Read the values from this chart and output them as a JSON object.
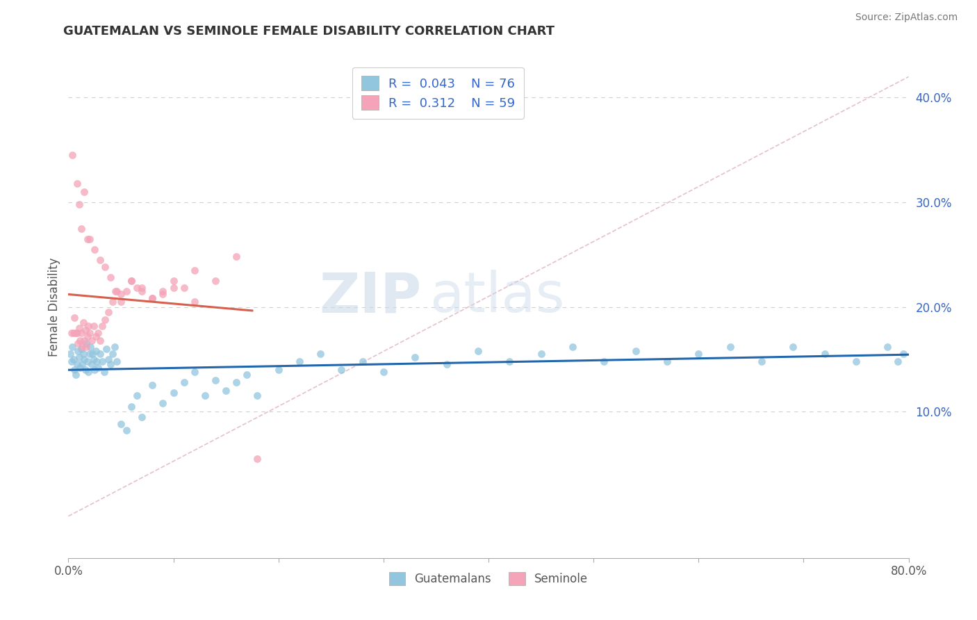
{
  "title": "GUATEMALAN VS SEMINOLE FEMALE DISABILITY CORRELATION CHART",
  "source": "Source: ZipAtlas.com",
  "ylabel": "Female Disability",
  "xlim": [
    0.0,
    0.8
  ],
  "ylim": [
    -0.04,
    0.44
  ],
  "yticks": [
    0.1,
    0.2,
    0.3,
    0.4
  ],
  "ytick_labels": [
    "10.0%",
    "20.0%",
    "30.0%",
    "40.0%"
  ],
  "guatemalan_color": "#92c5de",
  "seminole_color": "#f4a3b8",
  "trend_guatemalan_color": "#2166ac",
  "trend_seminole_color": "#d6604d",
  "diagonal_color": "#e0b0c0",
  "watermark_zip": "ZIP",
  "watermark_atlas": "atlas",
  "legend_blue_label": "R =  0.043   N = 76",
  "legend_pink_label": "R =  0.312   N = 59",
  "guat_x": [
    0.002,
    0.003,
    0.004,
    0.005,
    0.006,
    0.007,
    0.008,
    0.009,
    0.01,
    0.011,
    0.012,
    0.013,
    0.014,
    0.015,
    0.016,
    0.017,
    0.018,
    0.019,
    0.02,
    0.021,
    0.022,
    0.023,
    0.024,
    0.025,
    0.026,
    0.027,
    0.028,
    0.03,
    0.032,
    0.034,
    0.036,
    0.038,
    0.04,
    0.042,
    0.044,
    0.046,
    0.05,
    0.055,
    0.06,
    0.065,
    0.07,
    0.08,
    0.09,
    0.1,
    0.11,
    0.12,
    0.13,
    0.14,
    0.15,
    0.16,
    0.17,
    0.18,
    0.2,
    0.22,
    0.24,
    0.26,
    0.28,
    0.3,
    0.33,
    0.36,
    0.39,
    0.42,
    0.45,
    0.48,
    0.51,
    0.54,
    0.57,
    0.6,
    0.63,
    0.66,
    0.69,
    0.72,
    0.75,
    0.78,
    0.79,
    0.795
  ],
  "guat_y": [
    0.155,
    0.148,
    0.162,
    0.15,
    0.14,
    0.135,
    0.145,
    0.158,
    0.152,
    0.142,
    0.16,
    0.145,
    0.155,
    0.15,
    0.14,
    0.165,
    0.148,
    0.138,
    0.155,
    0.162,
    0.145,
    0.155,
    0.15,
    0.14,
    0.158,
    0.148,
    0.142,
    0.155,
    0.148,
    0.138,
    0.16,
    0.15,
    0.145,
    0.155,
    0.162,
    0.148,
    0.088,
    0.082,
    0.105,
    0.115,
    0.095,
    0.125,
    0.108,
    0.118,
    0.128,
    0.138,
    0.115,
    0.13,
    0.12,
    0.128,
    0.135,
    0.115,
    0.14,
    0.148,
    0.155,
    0.14,
    0.148,
    0.138,
    0.152,
    0.145,
    0.158,
    0.148,
    0.155,
    0.162,
    0.148,
    0.158,
    0.148,
    0.155,
    0.162,
    0.148,
    0.162,
    0.155,
    0.148,
    0.162,
    0.148,
    0.155
  ],
  "semi_x": [
    0.003,
    0.005,
    0.006,
    0.007,
    0.008,
    0.009,
    0.01,
    0.011,
    0.012,
    0.013,
    0.014,
    0.015,
    0.016,
    0.017,
    0.018,
    0.019,
    0.02,
    0.022,
    0.024,
    0.026,
    0.028,
    0.03,
    0.032,
    0.035,
    0.038,
    0.042,
    0.046,
    0.05,
    0.055,
    0.06,
    0.065,
    0.07,
    0.08,
    0.09,
    0.1,
    0.11,
    0.12,
    0.14,
    0.16,
    0.18,
    0.004,
    0.008,
    0.01,
    0.012,
    0.015,
    0.018,
    0.02,
    0.025,
    0.03,
    0.035,
    0.04,
    0.045,
    0.05,
    0.06,
    0.07,
    0.08,
    0.09,
    0.1,
    0.12
  ],
  "semi_y": [
    0.175,
    0.175,
    0.19,
    0.175,
    0.175,
    0.165,
    0.18,
    0.168,
    0.175,
    0.162,
    0.185,
    0.168,
    0.178,
    0.162,
    0.172,
    0.182,
    0.175,
    0.168,
    0.182,
    0.172,
    0.175,
    0.168,
    0.182,
    0.188,
    0.195,
    0.205,
    0.215,
    0.205,
    0.215,
    0.225,
    0.218,
    0.215,
    0.208,
    0.215,
    0.225,
    0.218,
    0.235,
    0.225,
    0.248,
    0.055,
    0.345,
    0.318,
    0.298,
    0.275,
    0.31,
    0.265,
    0.265,
    0.255,
    0.245,
    0.238,
    0.228,
    0.215,
    0.212,
    0.225,
    0.218,
    0.208,
    0.212,
    0.218,
    0.205
  ]
}
